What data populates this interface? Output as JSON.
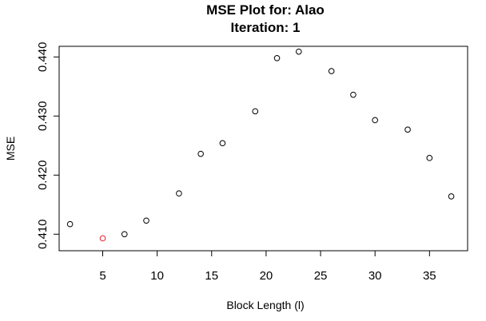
{
  "chart_data": {
    "type": "scatter",
    "title": [
      "MSE Plot for: Alao",
      "Iteration: 1"
    ],
    "xlabel": "Block Length (l)",
    "ylabel": "MSE",
    "xlim": [
      1,
      38.5
    ],
    "ylim": [
      0.4072,
      0.4418
    ],
    "xticks": [
      5,
      10,
      15,
      20,
      25,
      30,
      35
    ],
    "yticks": [
      0.41,
      0.42,
      0.43,
      0.44
    ],
    "ytick_labels": [
      "0.410",
      "0.420",
      "0.430",
      "0.440"
    ],
    "grid": false,
    "points": [
      {
        "x": 2,
        "y": 0.4117
      },
      {
        "x": 5,
        "y": 0.4093,
        "color": "#e8202a"
      },
      {
        "x": 7,
        "y": 0.41
      },
      {
        "x": 9,
        "y": 0.4123
      },
      {
        "x": 12,
        "y": 0.4169
      },
      {
        "x": 14,
        "y": 0.4236
      },
      {
        "x": 16,
        "y": 0.4254
      },
      {
        "x": 19,
        "y": 0.4308
      },
      {
        "x": 21,
        "y": 0.4398
      },
      {
        "x": 23,
        "y": 0.4409
      },
      {
        "x": 26,
        "y": 0.4376
      },
      {
        "x": 28,
        "y": 0.4336
      },
      {
        "x": 30,
        "y": 0.4293
      },
      {
        "x": 33,
        "y": 0.4277
      },
      {
        "x": 35,
        "y": 0.4229
      },
      {
        "x": 37,
        "y": 0.4164
      }
    ],
    "marker_color": "#000000"
  }
}
